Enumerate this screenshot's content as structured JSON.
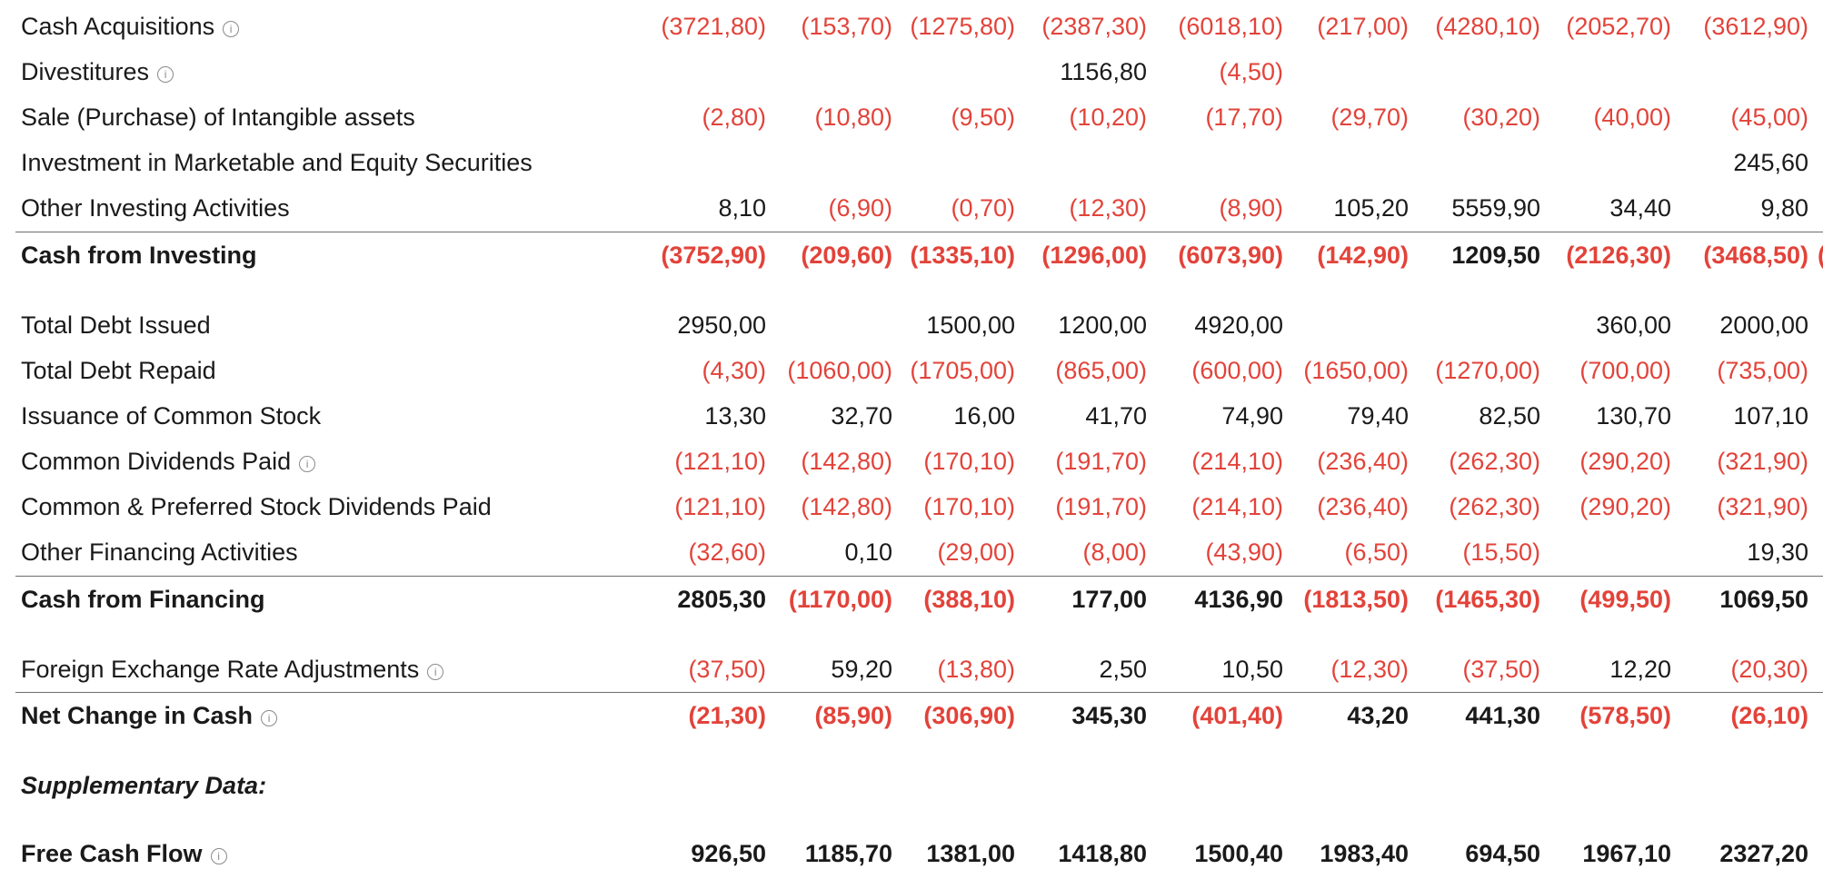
{
  "rows": [
    {
      "label": "Cash Acquisitions",
      "info": true,
      "style": "normal",
      "values": [
        "(3721,80)",
        "(153,70)",
        "(1275,80)",
        "(2387,30)",
        "(6018,10)",
        "(217,00)",
        "(4280,10)",
        "(2052,70)",
        "(3612,90)"
      ]
    },
    {
      "label": "Divestitures",
      "info": true,
      "style": "normal",
      "values": [
        "",
        "",
        "",
        "1156,80",
        "(4,50)",
        "",
        "",
        "",
        ""
      ]
    },
    {
      "label": "Sale (Purchase) of Intangible assets",
      "info": false,
      "style": "normal",
      "values": [
        "(2,80)",
        "(10,80)",
        "(9,50)",
        "(10,20)",
        "(17,70)",
        "(29,70)",
        "(30,20)",
        "(40,00)",
        "(45,00)"
      ]
    },
    {
      "label": "Investment in Marketable and Equity Securities",
      "info": false,
      "style": "normal",
      "values": [
        "",
        "",
        "",
        "",
        "",
        "",
        "",
        "",
        "245,60"
      ]
    },
    {
      "label": "Other Investing Activities",
      "info": false,
      "style": "normal",
      "values": [
        "8,10",
        "(6,90)",
        "(0,70)",
        "(12,30)",
        "(8,90)",
        "105,20",
        "5559,90",
        "34,40",
        "9,80"
      ]
    },
    {
      "label": "Cash from Investing",
      "info": false,
      "style": "bold",
      "values": [
        "(3752,90)",
        "(209,60)",
        "(1335,10)",
        "(1296,00)",
        "(6073,90)",
        "(142,90)",
        "1209,50",
        "(2126,30)",
        "(3468,50)"
      ]
    },
    {
      "label": "Total Debt Issued",
      "info": false,
      "style": "normal",
      "values": [
        "2950,00",
        "",
        "1500,00",
        "1200,00",
        "4920,00",
        "",
        "",
        "360,00",
        "2000,00"
      ]
    },
    {
      "label": "Total Debt Repaid",
      "info": false,
      "style": "normal",
      "values": [
        "(4,30)",
        "(1060,00)",
        "(1705,00)",
        "(865,00)",
        "(600,00)",
        "(1650,00)",
        "(1270,00)",
        "(700,00)",
        "(735,00)"
      ]
    },
    {
      "label": "Issuance of Common Stock",
      "info": false,
      "style": "normal",
      "values": [
        "13,30",
        "32,70",
        "16,00",
        "41,70",
        "74,90",
        "79,40",
        "82,50",
        "130,70",
        "107,10"
      ]
    },
    {
      "label": "Common Dividends Paid",
      "info": true,
      "style": "normal",
      "values": [
        "(121,10)",
        "(142,80)",
        "(170,10)",
        "(191,70)",
        "(214,10)",
        "(236,40)",
        "(262,30)",
        "(290,20)",
        "(321,90)"
      ]
    },
    {
      "label": "Common & Preferred Stock Dividends Paid",
      "info": false,
      "style": "normal",
      "values": [
        "(121,10)",
        "(142,80)",
        "(170,10)",
        "(191,70)",
        "(214,10)",
        "(236,40)",
        "(262,30)",
        "(290,20)",
        "(321,90)"
      ]
    },
    {
      "label": "Other Financing Activities",
      "info": false,
      "style": "normal",
      "values": [
        "(32,60)",
        "0,10",
        "(29,00)",
        "(8,00)",
        "(43,90)",
        "(6,50)",
        "(15,50)",
        "",
        "19,30"
      ]
    },
    {
      "label": "Cash from Financing",
      "info": false,
      "style": "bold",
      "values": [
        "2805,30",
        "(1170,00)",
        "(388,10)",
        "177,00",
        "4136,90",
        "(1813,50)",
        "(1465,30)",
        "(499,50)",
        "1069,50"
      ]
    },
    {
      "label": "Foreign Exchange Rate Adjustments",
      "info": true,
      "style": "normal",
      "values": [
        "(37,50)",
        "59,20",
        "(13,80)",
        "2,50",
        "10,50",
        "(12,30)",
        "(37,50)",
        "12,20",
        "(20,30)"
      ]
    },
    {
      "label": "Net Change in Cash",
      "info": true,
      "style": "bold",
      "values": [
        "(21,30)",
        "(85,90)",
        "(306,90)",
        "345,30",
        "(401,40)",
        "43,20",
        "441,30",
        "(578,50)",
        "(26,10)"
      ]
    },
    {
      "label": "Supplementary Data:",
      "info": false,
      "style": "italic",
      "values": [
        "",
        "",
        "",
        "",
        "",
        "",
        "",
        "",
        ""
      ]
    },
    {
      "label": "Free Cash Flow",
      "info": true,
      "style": "bold",
      "values": [
        "926,50",
        "1185,70",
        "1381,00",
        "1418,80",
        "1500,40",
        "1983,40",
        "694,50",
        "1967,10",
        "2327,20"
      ]
    }
  ],
  "overflow_glyph": "(",
  "info_icon": "info-circle-icon",
  "colors": {
    "negative": "#e2433a",
    "positive": "#1a1a1a",
    "separator": "#6e6e6e"
  }
}
